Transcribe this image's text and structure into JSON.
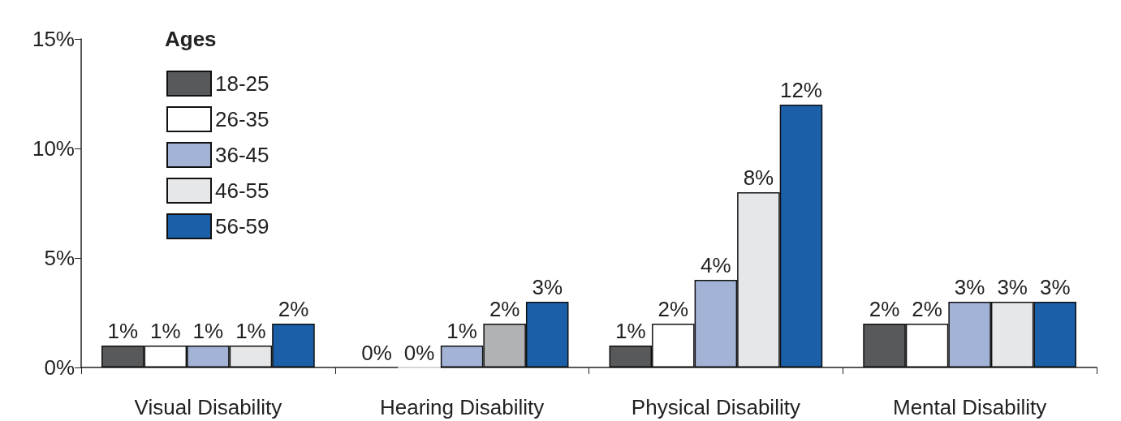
{
  "chart_data": {
    "type": "bar",
    "categories": [
      "Visual Disability",
      "Hearing Disability",
      "Physical Disability",
      "Mental Disability"
    ],
    "legend_title": "Ages",
    "legend": "top left",
    "grid": false,
    "ylim": [
      0,
      15
    ],
    "yticks": [
      {
        "value": 0,
        "label": "0%"
      },
      {
        "value": 5,
        "label": "5%"
      },
      {
        "value": 10,
        "label": "10%"
      },
      {
        "value": 15,
        "label": "15%"
      }
    ],
    "series": [
      {
        "name": "18-25",
        "color": "#58595b",
        "values": [
          1,
          0,
          1,
          2
        ],
        "value_labels": [
          "1%",
          "0%",
          "1%",
          "2%"
        ]
      },
      {
        "name": "26-35",
        "color": "#ffffff",
        "values": [
          1,
          0,
          2,
          2
        ],
        "value_labels": [
          "1%",
          "0%",
          "2%",
          "2%"
        ]
      },
      {
        "name": "36-45",
        "color": "#a3b3d6",
        "values": [
          1,
          1,
          4,
          3
        ],
        "value_labels": [
          "1%",
          "1%",
          "4%",
          "3%"
        ]
      },
      {
        "name": "46-55",
        "color": "#e6e7e8",
        "colors": [
          "#e6e7e8",
          "#b1b2b4",
          "#e6e7e8",
          "#e6e7e8"
        ],
        "values": [
          1,
          2,
          8,
          3
        ],
        "value_labels": [
          "1%",
          "2%",
          "8%",
          "3%"
        ]
      },
      {
        "name": "56-59",
        "color": "#1a5fa8",
        "values": [
          2,
          3,
          12,
          3
        ],
        "value_labels": [
          "2%",
          "3%",
          "12%",
          "3%"
        ]
      }
    ]
  }
}
